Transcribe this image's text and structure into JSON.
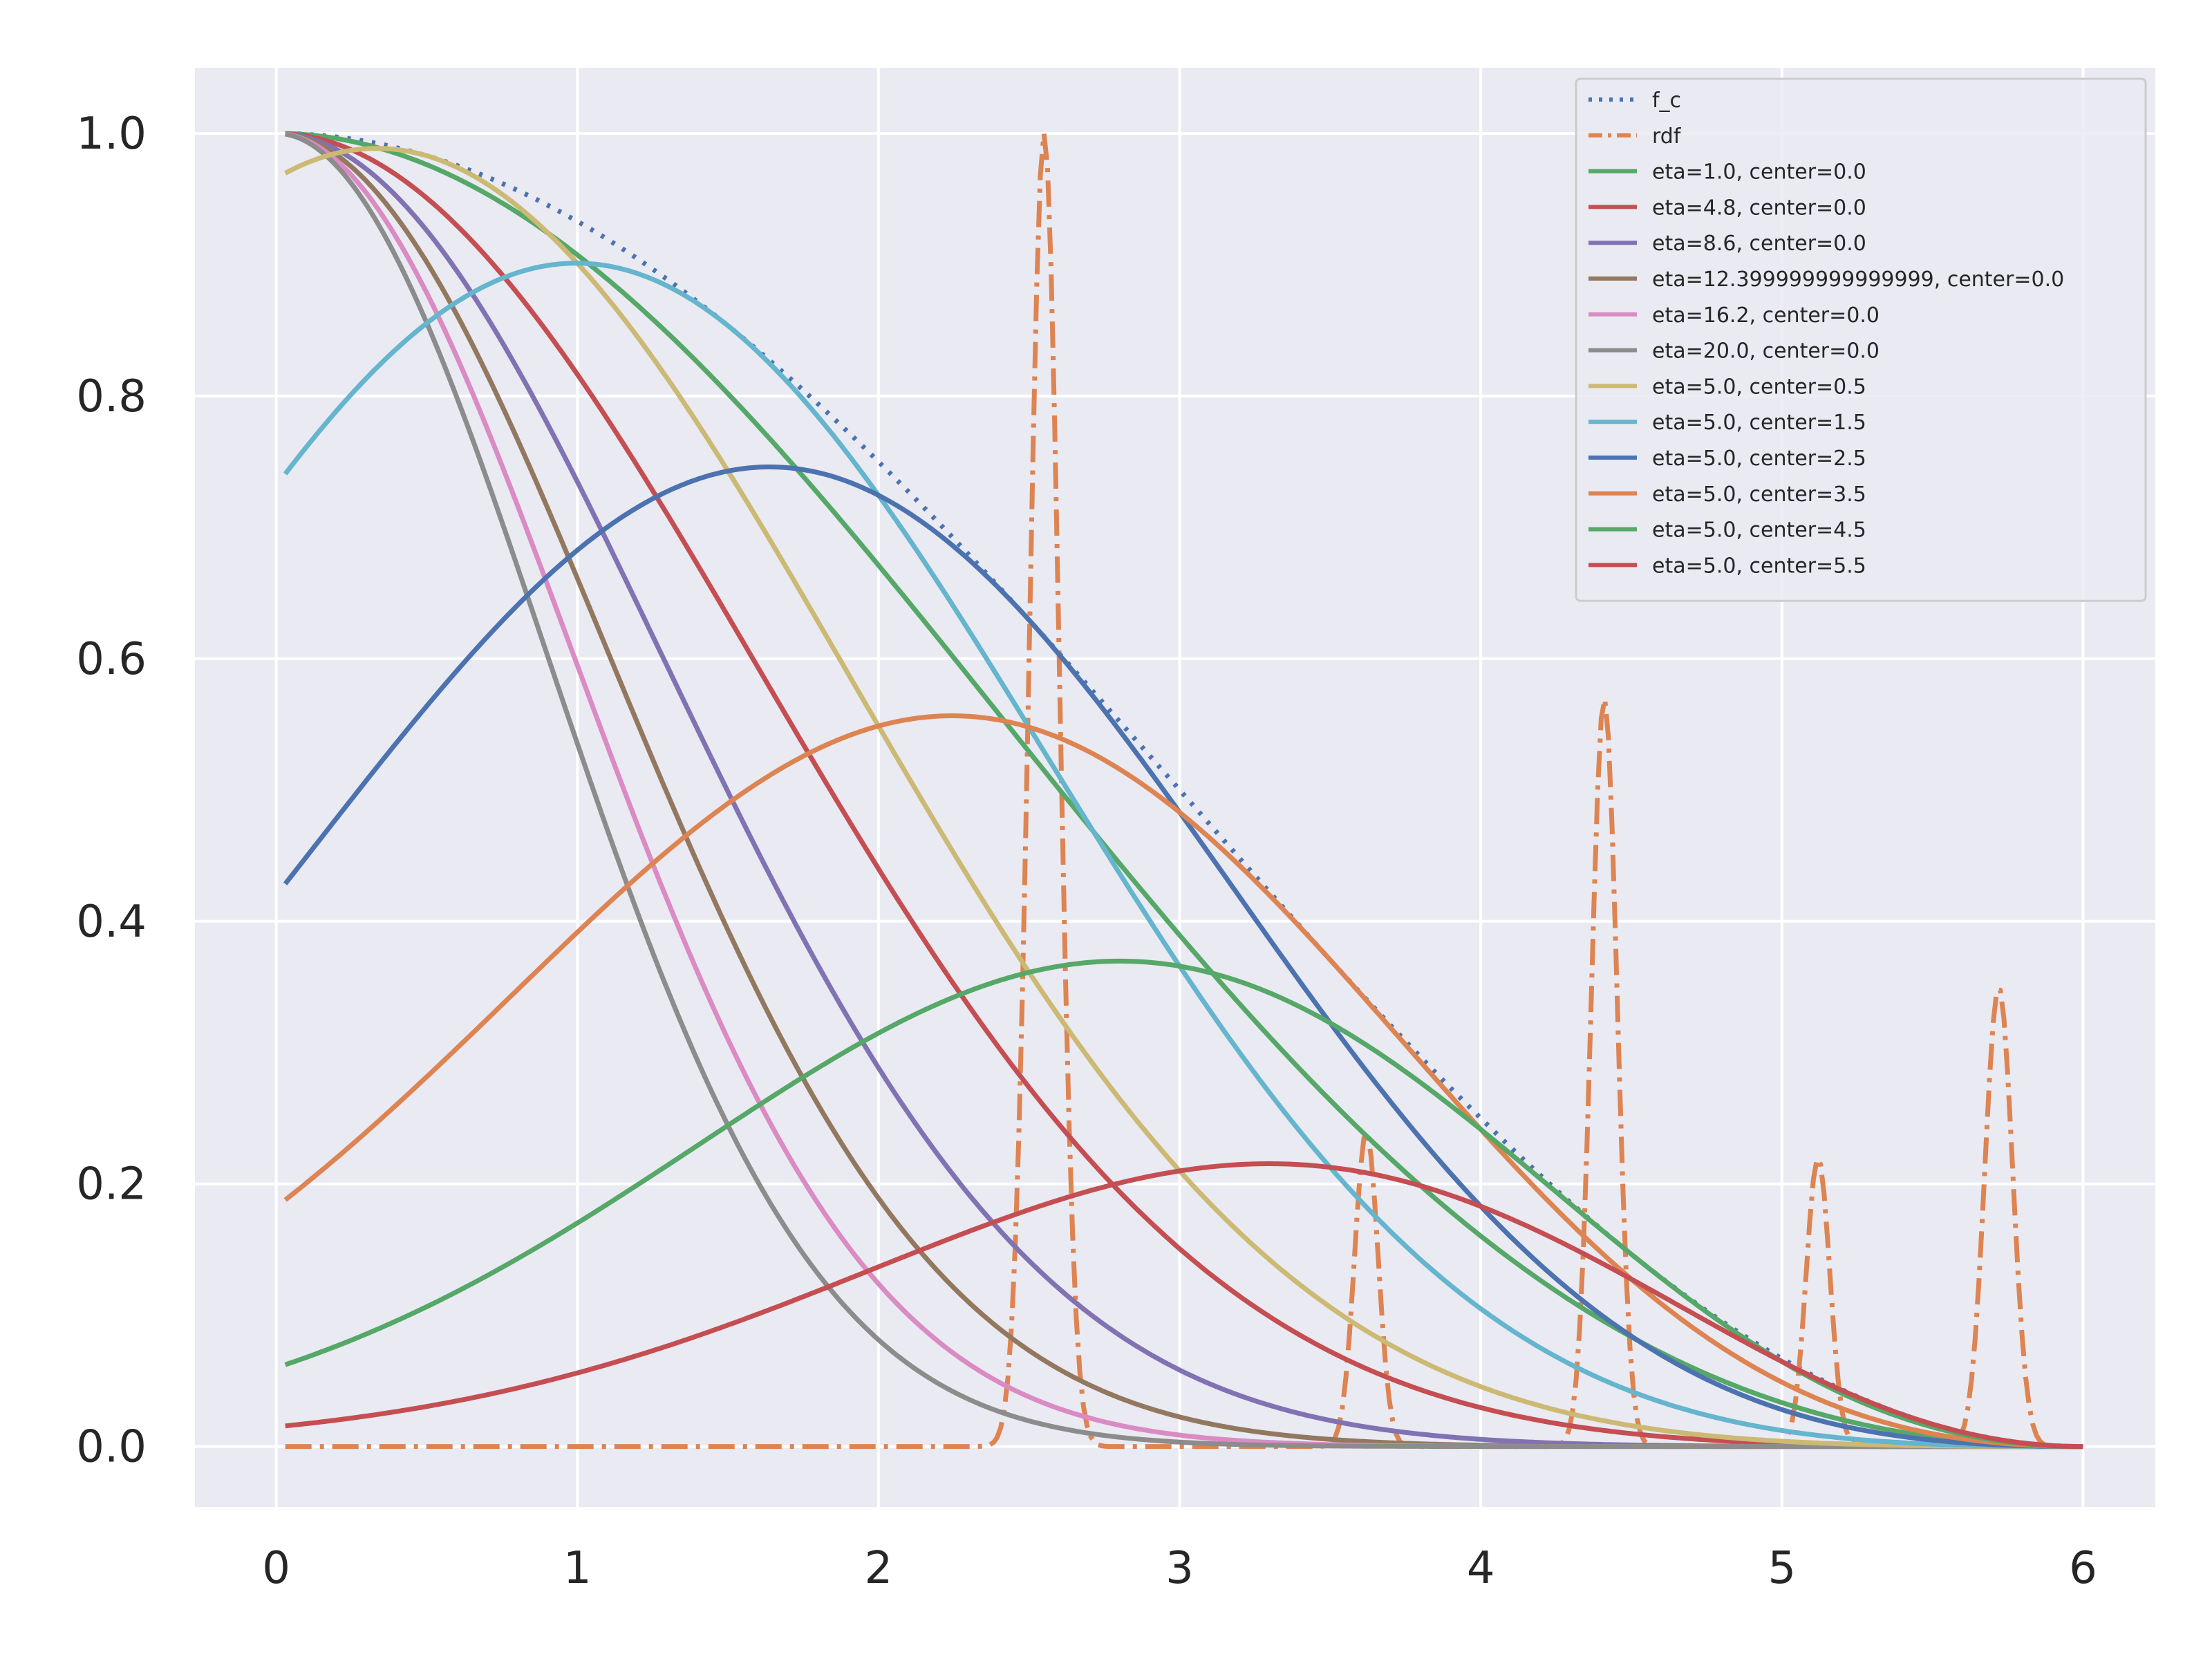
{
  "chart_data": {
    "type": "line",
    "title": "",
    "xlabel": "",
    "ylabel": "",
    "xlim": [
      -0.27,
      6.24
    ],
    "ylim": [
      -0.046,
      1.05
    ],
    "grid": true,
    "legend_position": "top-right",
    "xticks": [
      0,
      1,
      2,
      3,
      4,
      5,
      6
    ],
    "yticks": [
      0.0,
      0.2,
      0.4,
      0.6,
      0.8,
      1.0
    ],
    "xtick_labels": [
      "0",
      "1",
      "2",
      "3",
      "4",
      "5",
      "6"
    ],
    "ytick_labels": [
      "0.0",
      "0.2",
      "0.4",
      "0.6",
      "0.8",
      "1.0"
    ],
    "cutoff": 6.0,
    "x_start": 0.03,
    "series": [
      {
        "name": "f_c",
        "color": "#4c72b0",
        "style": "dotted",
        "kind": "cutoff"
      },
      {
        "name": "rdf",
        "color": "#dd8452",
        "style": "dashdot",
        "kind": "rdf",
        "peaks": [
          {
            "center": 2.55,
            "height": 1.0,
            "width": 0.07
          },
          {
            "center": 3.62,
            "height": 0.24,
            "width": 0.055
          },
          {
            "center": 4.41,
            "height": 0.57,
            "width": 0.06
          },
          {
            "center": 5.12,
            "height": 0.22,
            "width": 0.055
          },
          {
            "center": 5.72,
            "height": 0.35,
            "width": 0.065
          }
        ]
      },
      {
        "name": "eta=1.0, center=0.0",
        "color": "#55a868",
        "style": "solid",
        "eta": 1.0,
        "center": 0.0
      },
      {
        "name": "eta=4.8, center=0.0",
        "color": "#c44e52",
        "style": "solid",
        "eta": 4.8,
        "center": 0.0
      },
      {
        "name": "eta=8.6, center=0.0",
        "color": "#8172b3",
        "style": "solid",
        "eta": 8.6,
        "center": 0.0
      },
      {
        "name": "eta=12.399999999999999, center=0.0",
        "color": "#937860",
        "style": "solid",
        "eta": 12.399999999999999,
        "center": 0.0
      },
      {
        "name": "eta=16.2, center=0.0",
        "color": "#da8bc3",
        "style": "solid",
        "eta": 16.2,
        "center": 0.0
      },
      {
        "name": "eta=20.0, center=0.0",
        "color": "#8c8c8c",
        "style": "solid",
        "eta": 20.0,
        "center": 0.0
      },
      {
        "name": "eta=5.0, center=0.5",
        "color": "#ccb974",
        "style": "solid",
        "eta": 5.0,
        "center": 0.5
      },
      {
        "name": "eta=5.0, center=1.5",
        "color": "#64b5cd",
        "style": "solid",
        "eta": 5.0,
        "center": 1.5
      },
      {
        "name": "eta=5.0, center=2.5",
        "color": "#4c72b0",
        "style": "solid",
        "eta": 5.0,
        "center": 2.5
      },
      {
        "name": "eta=5.0, center=3.5",
        "color": "#dd8452",
        "style": "solid",
        "eta": 5.0,
        "center": 3.5
      },
      {
        "name": "eta=5.0, center=4.5",
        "color": "#55a868",
        "style": "solid",
        "eta": 5.0,
        "center": 4.5
      },
      {
        "name": "eta=5.0, center=5.5",
        "color": "#c44e52",
        "style": "solid",
        "eta": 5.0,
        "center": 5.5
      }
    ]
  }
}
